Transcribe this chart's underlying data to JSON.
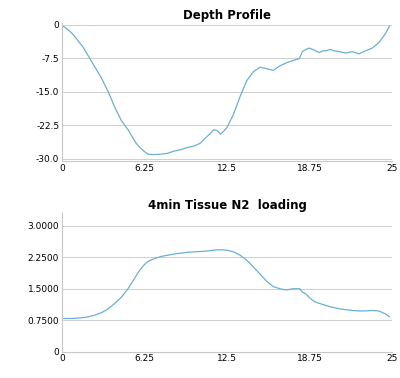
{
  "title1": "Depth Profile",
  "title2": "4min Tissue N2  loading",
  "line_color": "#6baed6",
  "bg_color": "#ffffff",
  "grid_color": "#c8c8c8",
  "xlim": [
    0,
    25
  ],
  "depth_ylim": [
    -30.5,
    0.5
  ],
  "depth_yticks": [
    0,
    -7.5,
    -15.0,
    -22.5,
    -30.0
  ],
  "depth_ytick_labels": [
    "0",
    "-7.5",
    "-15.0",
    "-22.5",
    "-30.0"
  ],
  "n2_ylim": [
    0,
    3.3
  ],
  "n2_yticks": [
    0,
    0.75,
    1.5,
    2.25,
    3.0
  ],
  "n2_ytick_labels": [
    "0",
    "0.7500",
    "1.5000",
    "2.2500",
    "3.0000"
  ],
  "xticks": [
    0,
    6.25,
    12.5,
    18.75,
    25
  ],
  "xtick_labels": [
    "0",
    "6.25",
    "12.5",
    "18.75",
    "25"
  ],
  "depth_x": [
    0.0,
    0.2,
    0.5,
    0.8,
    1.2,
    1.6,
    2.0,
    2.5,
    3.0,
    3.5,
    4.0,
    4.5,
    5.0,
    5.3,
    5.6,
    5.9,
    6.2,
    6.5,
    7.0,
    7.5,
    8.0,
    8.5,
    9.0,
    9.5,
    10.0,
    10.5,
    11.0,
    11.2,
    11.5,
    11.8,
    12.0,
    12.2,
    12.5,
    13.0,
    13.5,
    14.0,
    14.5,
    15.0,
    15.5,
    16.0,
    16.5,
    17.0,
    17.5,
    18.0,
    18.2,
    18.5,
    18.7,
    19.0,
    19.2,
    19.5,
    19.8,
    20.0,
    20.3,
    20.6,
    21.0,
    21.5,
    22.0,
    22.5,
    23.0,
    23.5,
    24.0,
    24.5,
    24.8
  ],
  "depth_y": [
    -0.2,
    -0.5,
    -1.2,
    -2.0,
    -3.5,
    -5.0,
    -7.0,
    -9.5,
    -12.0,
    -15.0,
    -18.5,
    -21.5,
    -23.5,
    -25.0,
    -26.5,
    -27.5,
    -28.3,
    -29.0,
    -29.1,
    -29.0,
    -28.8,
    -28.3,
    -28.0,
    -27.5,
    -27.2,
    -26.5,
    -25.0,
    -24.5,
    -23.5,
    -23.8,
    -24.5,
    -24.0,
    -23.0,
    -20.0,
    -16.0,
    -12.5,
    -10.5,
    -9.5,
    -9.8,
    -10.2,
    -9.2,
    -8.5,
    -8.0,
    -7.5,
    -6.0,
    -5.5,
    -5.2,
    -5.5,
    -5.8,
    -6.2,
    -5.8,
    -5.8,
    -5.5,
    -5.8,
    -6.0,
    -6.3,
    -6.0,
    -6.5,
    -5.8,
    -5.2,
    -4.0,
    -2.0,
    -0.3
  ],
  "n2_x": [
    0.0,
    0.2,
    0.5,
    0.8,
    1.2,
    1.6,
    2.0,
    2.5,
    3.0,
    3.5,
    4.0,
    4.5,
    5.0,
    5.3,
    5.6,
    5.9,
    6.2,
    6.5,
    7.0,
    7.5,
    8.0,
    8.5,
    9.0,
    9.5,
    10.0,
    10.5,
    11.0,
    11.2,
    11.5,
    11.8,
    12.0,
    12.2,
    12.5,
    13.0,
    13.5,
    14.0,
    14.5,
    15.0,
    15.5,
    16.0,
    16.5,
    17.0,
    17.5,
    18.0,
    18.2,
    18.5,
    18.7,
    19.0,
    19.2,
    19.5,
    19.8,
    20.0,
    20.3,
    20.6,
    21.0,
    21.5,
    22.0,
    22.5,
    23.0,
    23.5,
    24.0,
    24.5,
    24.8
  ],
  "n2_y": [
    0.79,
    0.79,
    0.79,
    0.79,
    0.8,
    0.81,
    0.83,
    0.87,
    0.93,
    1.02,
    1.15,
    1.3,
    1.5,
    1.65,
    1.8,
    1.95,
    2.06,
    2.15,
    2.22,
    2.27,
    2.3,
    2.33,
    2.35,
    2.37,
    2.38,
    2.39,
    2.4,
    2.41,
    2.42,
    2.43,
    2.43,
    2.43,
    2.42,
    2.38,
    2.3,
    2.18,
    2.02,
    1.85,
    1.68,
    1.55,
    1.5,
    1.47,
    1.5,
    1.5,
    1.42,
    1.37,
    1.3,
    1.22,
    1.18,
    1.15,
    1.12,
    1.1,
    1.07,
    1.05,
    1.02,
    1.0,
    0.98,
    0.97,
    0.97,
    0.98,
    0.97,
    0.9,
    0.83
  ]
}
